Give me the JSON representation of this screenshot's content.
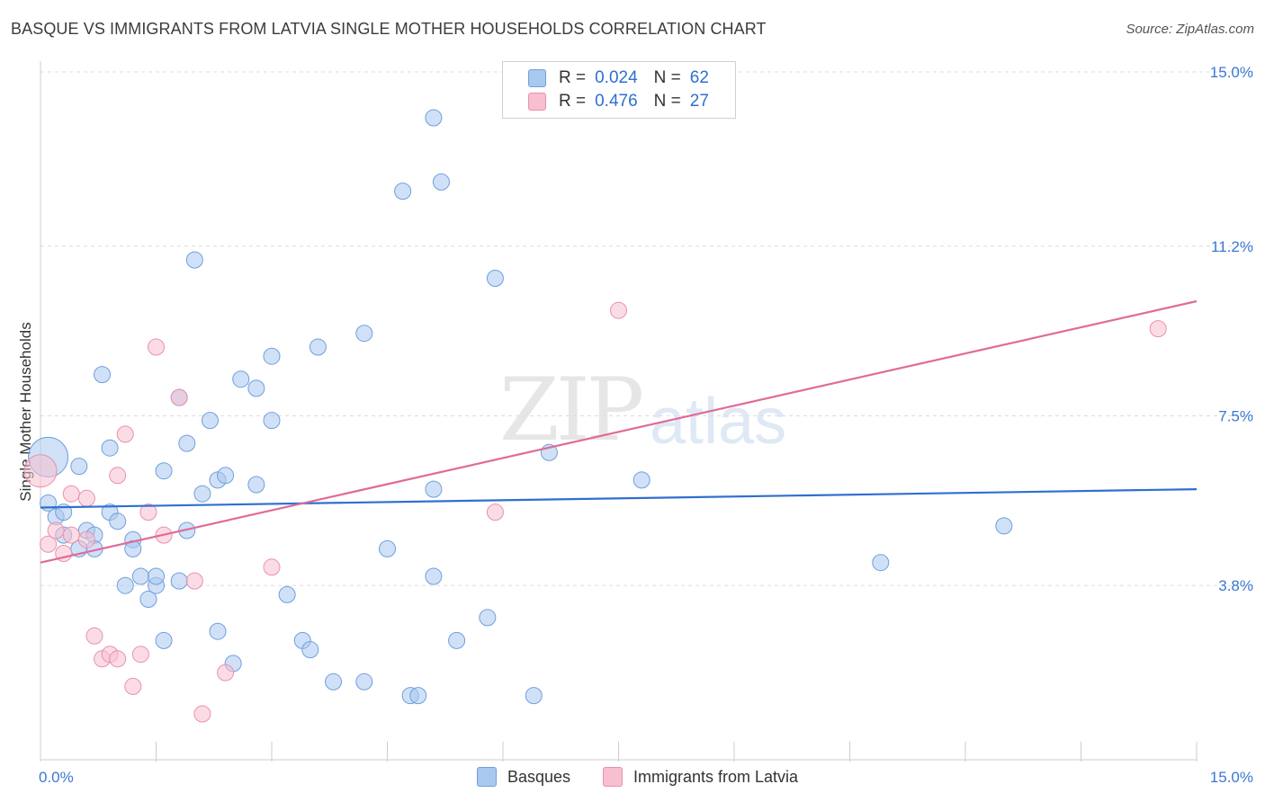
{
  "header": {
    "title": "BASQUE VS IMMIGRANTS FROM LATVIA SINGLE MOTHER HOUSEHOLDS CORRELATION CHART",
    "source": "Source: ZipAtlas.com"
  },
  "watermark": {
    "zip": "ZIP",
    "atlas": "atlas"
  },
  "legend_top": {
    "rows": [
      {
        "r_label": "R =",
        "r_value": "0.024",
        "n_label": "N =",
        "n_value": "62"
      },
      {
        "r_label": "R =",
        "r_value": "0.476",
        "n_label": "N =",
        "n_value": "27"
      }
    ]
  },
  "legend_bottom": {
    "series1": "Basques",
    "series2": "Immigrants from Latvia"
  },
  "colors": {
    "blue_fill": "#a9c8f0",
    "blue_stroke": "#6f9fdc",
    "blue_line": "#2f6fd0",
    "pink_fill": "#f7bfd0",
    "pink_stroke": "#e891ae",
    "pink_line": "#e06b98",
    "tick_label": "#3b78d4",
    "grid": "#dddddd"
  },
  "chart_data": {
    "type": "scatter",
    "title": "BASQUE VS IMMIGRANTS FROM LATVIA SINGLE MOTHER HOUSEHOLDS CORRELATION CHART",
    "xlabel": "",
    "ylabel": "Single Mother Households",
    "xlim": [
      0,
      15
    ],
    "ylim": [
      0,
      15
    ],
    "x_tick_labels": [
      "0.0%",
      "15.0%"
    ],
    "y_ticks": [
      {
        "value": 3.8,
        "label": "3.8%"
      },
      {
        "value": 7.5,
        "label": "7.5%"
      },
      {
        "value": 11.2,
        "label": "11.2%"
      },
      {
        "value": 15.0,
        "label": "15.0%"
      }
    ],
    "grid": true,
    "legend_position": "top-center",
    "series": [
      {
        "name": "Basques",
        "r": 0.024,
        "n": 62,
        "trend": {
          "x": [
            0,
            15
          ],
          "y": [
            5.5,
            5.9
          ]
        },
        "points": [
          [
            0.1,
            6.6,
            22
          ],
          [
            0.1,
            5.6,
            9
          ],
          [
            0.2,
            5.3,
            9
          ],
          [
            0.3,
            5.4,
            9
          ],
          [
            0.3,
            4.9,
            9
          ],
          [
            0.5,
            4.6,
            9
          ],
          [
            0.6,
            5.0,
            9
          ],
          [
            0.5,
            6.4,
            9
          ],
          [
            0.7,
            4.9,
            9
          ],
          [
            0.8,
            8.4,
            9
          ],
          [
            0.9,
            5.4,
            9
          ],
          [
            0.9,
            6.8,
            9
          ],
          [
            1.0,
            5.2,
            9
          ],
          [
            1.1,
            3.8,
            9
          ],
          [
            1.2,
            4.8,
            9
          ],
          [
            1.2,
            4.6,
            9
          ],
          [
            1.3,
            4.0,
            9
          ],
          [
            1.4,
            3.5,
            9
          ],
          [
            1.5,
            3.8,
            9
          ],
          [
            1.5,
            4.0,
            9
          ],
          [
            1.6,
            2.6,
            9
          ],
          [
            1.6,
            6.3,
            9
          ],
          [
            1.8,
            3.9,
            9
          ],
          [
            1.8,
            7.9,
            9
          ],
          [
            1.9,
            5.0,
            9
          ],
          [
            1.9,
            6.9,
            9
          ],
          [
            2.0,
            10.9,
            9
          ],
          [
            2.1,
            5.8,
            9
          ],
          [
            2.2,
            7.4,
            9
          ],
          [
            2.3,
            2.8,
            9
          ],
          [
            2.3,
            6.1,
            9
          ],
          [
            2.4,
            6.2,
            9
          ],
          [
            2.5,
            2.1,
            9
          ],
          [
            2.6,
            8.3,
            9
          ],
          [
            2.8,
            8.1,
            9
          ],
          [
            2.8,
            6.0,
            9
          ],
          [
            3.0,
            7.4,
            9
          ],
          [
            3.0,
            8.8,
            9
          ],
          [
            3.2,
            3.6,
            9
          ],
          [
            3.4,
            2.6,
            9
          ],
          [
            3.5,
            2.4,
            9
          ],
          [
            3.6,
            9.0,
            9
          ],
          [
            3.8,
            1.7,
            9
          ],
          [
            4.2,
            1.7,
            9
          ],
          [
            4.2,
            9.3,
            9
          ],
          [
            4.5,
            4.6,
            9
          ],
          [
            4.7,
            12.4,
            9
          ],
          [
            4.8,
            1.4,
            9
          ],
          [
            4.9,
            1.4,
            9
          ],
          [
            5.1,
            5.9,
            9
          ],
          [
            5.1,
            4.0,
            9
          ],
          [
            5.1,
            14.0,
            9
          ],
          [
            5.2,
            12.6,
            9
          ],
          [
            5.4,
            2.6,
            9
          ],
          [
            5.8,
            3.1,
            9
          ],
          [
            5.9,
            10.5,
            9
          ],
          [
            6.4,
            1.4,
            9
          ],
          [
            6.6,
            6.7,
            9
          ],
          [
            7.8,
            6.1,
            9
          ],
          [
            10.9,
            4.3,
            9
          ],
          [
            12.5,
            5.1,
            9
          ],
          [
            0.7,
            4.6,
            9
          ]
        ]
      },
      {
        "name": "Immigrants from Latvia",
        "r": 0.476,
        "n": 27,
        "trend": {
          "x": [
            0,
            15
          ],
          "y": [
            4.3,
            10.0
          ]
        },
        "points": [
          [
            0.0,
            6.3,
            18
          ],
          [
            0.1,
            4.7,
            9
          ],
          [
            0.2,
            5.0,
            9
          ],
          [
            0.3,
            4.5,
            9
          ],
          [
            0.4,
            4.9,
            9
          ],
          [
            0.4,
            5.8,
            9
          ],
          [
            0.6,
            5.7,
            9
          ],
          [
            0.6,
            4.8,
            9
          ],
          [
            0.7,
            2.7,
            9
          ],
          [
            0.8,
            2.2,
            9
          ],
          [
            0.9,
            2.3,
            9
          ],
          [
            1.0,
            6.2,
            9
          ],
          [
            1.0,
            2.2,
            9
          ],
          [
            1.1,
            7.1,
            9
          ],
          [
            1.2,
            1.6,
            9
          ],
          [
            1.3,
            2.3,
            9
          ],
          [
            1.4,
            5.4,
            9
          ],
          [
            1.5,
            9.0,
            9
          ],
          [
            1.6,
            4.9,
            9
          ],
          [
            1.8,
            7.9,
            9
          ],
          [
            2.0,
            3.9,
            9
          ],
          [
            2.1,
            1.0,
            9
          ],
          [
            2.4,
            1.9,
            9
          ],
          [
            3.0,
            4.2,
            9
          ],
          [
            5.9,
            5.4,
            9
          ],
          [
            7.5,
            9.8,
            9
          ],
          [
            14.5,
            9.4,
            9
          ]
        ]
      }
    ]
  }
}
